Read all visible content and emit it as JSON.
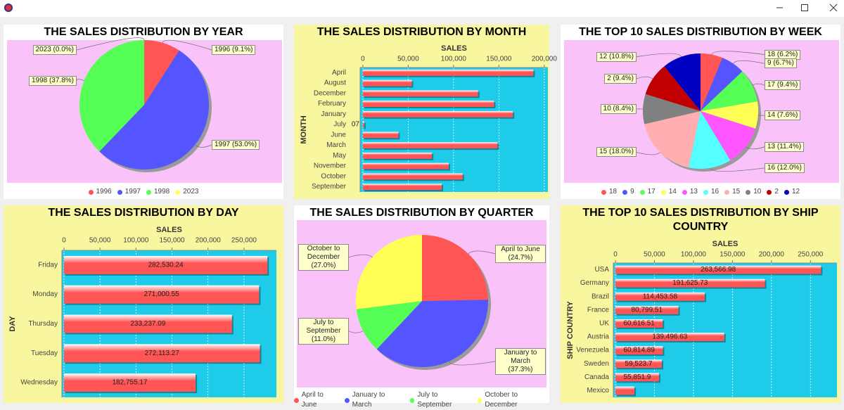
{
  "chart_data": [
    {
      "type": "pie",
      "title": "THE SALES DISTRIBUTION BY YEAR",
      "categories": [
        "1996",
        "1997",
        "1998",
        "2023"
      ],
      "values": [
        9.1,
        53.0,
        37.8,
        0.0
      ],
      "value_labels": [
        "1996 (9.1%)",
        "1997 (53.0%)",
        "1998 (37.8%)",
        "2023 (0.0%)"
      ],
      "colors": [
        "#ff5555",
        "#5555ff",
        "#55ff55",
        "#ffff55"
      ],
      "legend": "bottom"
    },
    {
      "type": "bar",
      "orientation": "horizontal",
      "title": "THE SALES DISTRIBUTION BY MONTH",
      "x_label": "SALES",
      "y_label": "MONTH",
      "categories": [
        "April",
        "August",
        "December",
        "February",
        "January",
        "July",
        "June",
        "March",
        "May",
        "November",
        "October",
        "September"
      ],
      "values": [
        188000,
        54000,
        127000,
        144600,
        165400,
        1500,
        39200,
        148500,
        76200,
        94600,
        110000,
        86900
      ],
      "annotation": "07",
      "color": "#ff5555",
      "xlim": [
        -3000,
        204000
      ],
      "xticks": [
        0,
        {
          "value": 50000,
          "label": "50,000"
        },
        {
          "value": 100000,
          "label": "100,000"
        },
        {
          "value": 150000,
          "label": "150,000"
        },
        {
          "value": 200000,
          "label": "200,000"
        }
      ],
      "grid": true
    },
    {
      "type": "pie",
      "title": "THE TOP 10 SALES DISTRIBUTION BY WEEK",
      "categories": [
        "18",
        "9",
        "17",
        "14",
        "13",
        "16",
        "15",
        "10",
        "2",
        "12"
      ],
      "values": [
        6.2,
        6.7,
        9.4,
        7.6,
        11.4,
        12.0,
        18.0,
        8.4,
        9.4,
        10.8
      ],
      "value_labels": [
        "18 (6.2%)",
        "9 (6.7%)",
        "17 (9.4%)",
        "14 (7.6%)",
        "13 (11.4%)",
        "16 (12.0%)",
        "15 (18.0%)",
        "10 (8.4%)",
        "2 (9.4%)",
        "12 (10.8%)"
      ],
      "colors": [
        "#ff5555",
        "#5555ff",
        "#55ff55",
        "#ffff55",
        "#ff55ff",
        "#55ffff",
        "#ffafaf",
        "#808080",
        "#c00000",
        "#0000c0"
      ],
      "legend": "bottom"
    },
    {
      "type": "bar",
      "orientation": "horizontal",
      "title": "THE SALES DISTRIBUTION BY DAY",
      "x_label": "SALES",
      "y_label": "DAY",
      "categories": [
        "Friday",
        "Monday",
        "Thursday",
        "Tuesday",
        "Wednesday"
      ],
      "values": [
        282530.24,
        271000.55,
        233237.09,
        272113.27,
        182755.17
      ],
      "value_labels": [
        "282,530.24",
        "271,000.55",
        "233,237.09",
        "272,113.27",
        "182,755.17"
      ],
      "color": "#ff5555",
      "xlim": [
        -2900,
        295000
      ],
      "xticks": [
        0,
        {
          "value": 50000,
          "label": "50,000"
        },
        {
          "value": 100000,
          "label": "100,000"
        },
        {
          "value": 150000,
          "label": "150,000"
        },
        {
          "value": 200000,
          "label": "200,000"
        },
        {
          "value": 250000,
          "label": "250,000"
        }
      ],
      "grid": true
    },
    {
      "type": "pie",
      "title": "THE SALES DISTRIBUTION BY QUARTER",
      "categories": [
        "April to June",
        "January to March",
        "July to September",
        "October to December"
      ],
      "values": [
        24.7,
        37.3,
        11.0,
        27.0
      ],
      "value_labels": [
        "April to June (24.7%)",
        "January to March (37.3%)",
        "July to September (11.0%)",
        "October to December (27.0%)"
      ],
      "colors": [
        "#ff5555",
        "#5555ff",
        "#55ff55",
        "#ffff55"
      ],
      "legend": "bottom"
    },
    {
      "type": "bar",
      "orientation": "horizontal",
      "title": "THE TOP 10 SALES DISTRIBUTION BY SHIP COUNTRY",
      "x_label": "SALES",
      "y_label": "SHIP COUNTRY",
      "categories": [
        "USA",
        "Germany",
        "Brazil",
        "France",
        "UK",
        "Austria",
        "Venezuela",
        "Sweden",
        "Canada",
        "Mexico"
      ],
      "values": [
        263566.98,
        191625.73,
        114453.58,
        80799.51,
        60616.51,
        139496.63,
        60814.89,
        59523.7,
        55851.9,
        24400
      ],
      "value_labels": [
        "263,566.98",
        "191,625.73",
        "114,453.58",
        "80,799.51",
        "60,616.51",
        "139,496.63",
        "60,814.89",
        "59,523.7",
        "55,851.9",
        null
      ],
      "color": "#ff5555",
      "xlim": [
        -2700,
        284000
      ],
      "xticks": [
        0,
        {
          "value": 50000,
          "label": "50,000"
        },
        {
          "value": 100000,
          "label": "100,000"
        },
        {
          "value": 150000,
          "label": "150,000"
        },
        {
          "value": 200000,
          "label": "200,000"
        },
        {
          "value": 250000,
          "label": "250,000"
        }
      ],
      "grid": true
    }
  ]
}
